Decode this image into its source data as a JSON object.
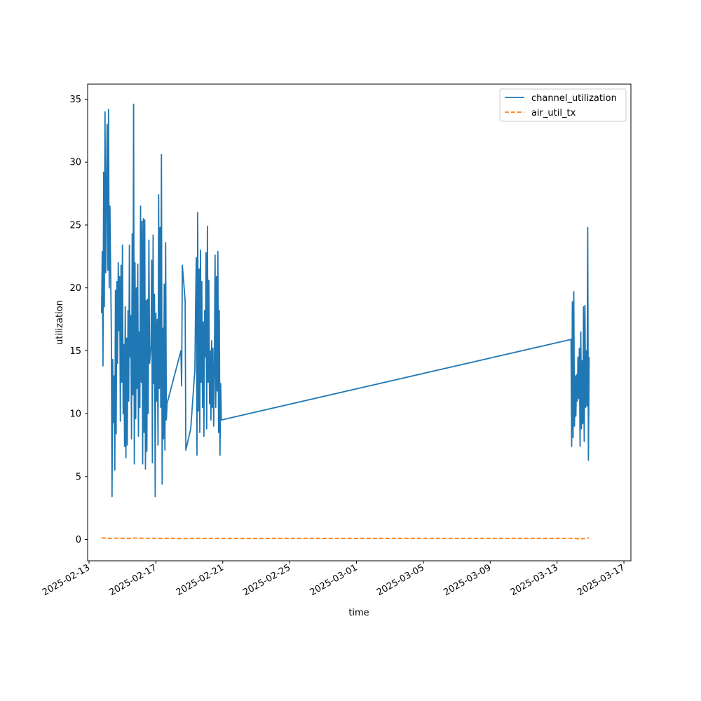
{
  "chart_data": {
    "type": "line",
    "xlabel": "time",
    "ylabel": "utilization",
    "x_type": "date",
    "xlim": [
      "2025-02-12T22:00",
      "2025-03-17T10:00"
    ],
    "ylim": [
      -1.7,
      36.2
    ],
    "x_ticks": [
      "2025-02-13",
      "2025-02-17",
      "2025-02-21",
      "2025-02-25",
      "2025-03-01",
      "2025-03-05",
      "2025-03-09",
      "2025-03-13",
      "2025-03-17"
    ],
    "y_ticks": [
      0,
      5,
      10,
      15,
      20,
      25,
      30,
      35
    ],
    "legend": "top-right",
    "grid": false,
    "series": [
      {
        "name": "channel_utilization",
        "color": "#1f77b4",
        "style": "solid",
        "points": [
          [
            "2025-02-13T18:00",
            18.0
          ],
          [
            "2025-02-13T19:00",
            22.9
          ],
          [
            "2025-02-13T20:00",
            13.8
          ],
          [
            "2025-02-13T21:00",
            29.2
          ],
          [
            "2025-02-13T22:00",
            18.5
          ],
          [
            "2025-02-13T23:00",
            34.0
          ],
          [
            "2025-02-14T00:00",
            21.2
          ],
          [
            "2025-02-14T01:00",
            27.5
          ],
          [
            "2025-02-14T02:00",
            33.0
          ],
          [
            "2025-02-14T03:00",
            21.4
          ],
          [
            "2025-02-14T04:00",
            34.2
          ],
          [
            "2025-02-14T05:00",
            20.0
          ],
          [
            "2025-02-14T06:00",
            26.5
          ],
          [
            "2025-02-14T08:00",
            16.6
          ],
          [
            "2025-02-14T09:00",
            3.4
          ],
          [
            "2025-02-14T10:00",
            14.3
          ],
          [
            "2025-02-14T11:00",
            9.3
          ],
          [
            "2025-02-14T12:00",
            13.0
          ],
          [
            "2025-02-14T13:00",
            5.5
          ],
          [
            "2025-02-14T14:00",
            19.8
          ],
          [
            "2025-02-14T15:00",
            8.4
          ],
          [
            "2025-02-14T16:00",
            20.5
          ],
          [
            "2025-02-14T17:00",
            14.0
          ],
          [
            "2025-02-14T18:00",
            22.0
          ],
          [
            "2025-02-14T19:00",
            16.6
          ],
          [
            "2025-02-14T20:00",
            20.9
          ],
          [
            "2025-02-14T21:00",
            9.4
          ],
          [
            "2025-02-14T22:00",
            21.8
          ],
          [
            "2025-02-14T23:00",
            12.5
          ],
          [
            "2025-02-15T00:00",
            23.4
          ],
          [
            "2025-02-15T01:00",
            10.0
          ],
          [
            "2025-02-15T02:00",
            15.5
          ],
          [
            "2025-02-15T03:00",
            7.4
          ],
          [
            "2025-02-15T04:00",
            18.5
          ],
          [
            "2025-02-15T05:00",
            6.5
          ],
          [
            "2025-02-15T06:00",
            16.0
          ],
          [
            "2025-02-15T07:00",
            7.5
          ],
          [
            "2025-02-15T08:00",
            18.2
          ],
          [
            "2025-02-15T09:00",
            11.0
          ],
          [
            "2025-02-15T10:00",
            23.4
          ],
          [
            "2025-02-15T11:00",
            14.5
          ],
          [
            "2025-02-15T12:00",
            17.8
          ],
          [
            "2025-02-15T13:00",
            8.0
          ],
          [
            "2025-02-15T14:00",
            24.3
          ],
          [
            "2025-02-15T15:00",
            11.5
          ],
          [
            "2025-02-15T16:00",
            34.6
          ],
          [
            "2025-02-15T17:00",
            6.0
          ],
          [
            "2025-02-15T18:00",
            22.0
          ],
          [
            "2025-02-15T19:00",
            9.6
          ],
          [
            "2025-02-15T20:00",
            20.0
          ],
          [
            "2025-02-15T21:00",
            12.0
          ],
          [
            "2025-02-15T22:00",
            21.9
          ],
          [
            "2025-02-15T23:00",
            8.2
          ],
          [
            "2025-02-16T00:00",
            16.5
          ],
          [
            "2025-02-16T01:00",
            10.5
          ],
          [
            "2025-02-16T02:00",
            26.5
          ],
          [
            "2025-02-16T03:00",
            12.5
          ],
          [
            "2025-02-16T04:00",
            25.3
          ],
          [
            "2025-02-16T05:00",
            6.0
          ],
          [
            "2025-02-16T06:00",
            25.5
          ],
          [
            "2025-02-16T07:00",
            8.5
          ],
          [
            "2025-02-16T08:00",
            25.4
          ],
          [
            "2025-02-16T09:00",
            5.6
          ],
          [
            "2025-02-16T10:00",
            19.0
          ],
          [
            "2025-02-16T11:00",
            7.0
          ],
          [
            "2025-02-16T12:00",
            19.1
          ],
          [
            "2025-02-16T13:00",
            10.0
          ],
          [
            "2025-02-16T14:00",
            23.8
          ],
          [
            "2025-02-16T15:00",
            14.0
          ],
          [
            "2025-02-16T17:00",
            15.4
          ],
          [
            "2025-02-16T18:00",
            22.2
          ],
          [
            "2025-02-16T19:00",
            6.1
          ],
          [
            "2025-02-16T20:00",
            24.2
          ],
          [
            "2025-02-16T21:00",
            12.4
          ],
          [
            "2025-02-16T22:00",
            19.5
          ],
          [
            "2025-02-16T23:00",
            3.4
          ],
          [
            "2025-02-17T00:00",
            18.0
          ],
          [
            "2025-02-17T01:00",
            11.0
          ],
          [
            "2025-02-17T02:00",
            17.5
          ],
          [
            "2025-02-17T03:00",
            7.5
          ],
          [
            "2025-02-17T04:00",
            27.4
          ],
          [
            "2025-02-17T05:00",
            12.0
          ],
          [
            "2025-02-17T06:00",
            24.8
          ],
          [
            "2025-02-17T07:00",
            10.5
          ],
          [
            "2025-02-17T08:00",
            30.6
          ],
          [
            "2025-02-17T09:00",
            4.4
          ],
          [
            "2025-02-17T10:00",
            16.8
          ],
          [
            "2025-02-17T11:00",
            8.0
          ],
          [
            "2025-02-17T12:00",
            20.3
          ],
          [
            "2025-02-17T13:00",
            7.1
          ],
          [
            "2025-02-17T14:00",
            23.6
          ],
          [
            "2025-02-17T15:00",
            9.5
          ],
          [
            "2025-02-17T16:00",
            10.8
          ],
          [
            "2025-02-18T12:00",
            15.0
          ],
          [
            "2025-02-18T13:00",
            12.2
          ],
          [
            "2025-02-18T14:00",
            21.8
          ],
          [
            "2025-02-18T18:00",
            19.0
          ],
          [
            "2025-02-18T19:00",
            7.1
          ],
          [
            "2025-02-19T02:00",
            8.8
          ],
          [
            "2025-02-19T08:00",
            13.5
          ],
          [
            "2025-02-19T09:00",
            18.5
          ],
          [
            "2025-02-19T10:00",
            22.4
          ],
          [
            "2025-02-19T11:00",
            6.7
          ],
          [
            "2025-02-19T12:00",
            26.0
          ],
          [
            "2025-02-19T13:00",
            10.2
          ],
          [
            "2025-02-19T14:00",
            21.5
          ],
          [
            "2025-02-19T15:00",
            8.5
          ],
          [
            "2025-02-19T16:00",
            23.0
          ],
          [
            "2025-02-19T17:00",
            12.5
          ],
          [
            "2025-02-19T18:00",
            20.5
          ],
          [
            "2025-02-19T19:00",
            10.5
          ],
          [
            "2025-02-19T20:00",
            17.3
          ],
          [
            "2025-02-19T21:00",
            8.2
          ],
          [
            "2025-02-19T22:00",
            18.2
          ],
          [
            "2025-02-19T23:00",
            14.5
          ],
          [
            "2025-02-20T00:00",
            22.8
          ],
          [
            "2025-02-20T01:00",
            8.8
          ],
          [
            "2025-02-20T02:00",
            24.9
          ],
          [
            "2025-02-20T03:00",
            12.5
          ],
          [
            "2025-02-20T04:00",
            20.6
          ],
          [
            "2025-02-20T05:00",
            10.8
          ],
          [
            "2025-02-20T06:00",
            15.0
          ],
          [
            "2025-02-20T07:00",
            9.5
          ],
          [
            "2025-02-20T08:00",
            15.8
          ],
          [
            "2025-02-20T09:00",
            10.5
          ],
          [
            "2025-02-20T10:00",
            15.2
          ],
          [
            "2025-02-20T11:00",
            9.0
          ],
          [
            "2025-02-20T12:00",
            13.5
          ],
          [
            "2025-02-20T13:00",
            22.6
          ],
          [
            "2025-02-20T14:00",
            10.5
          ],
          [
            "2025-02-20T15:00",
            20.9
          ],
          [
            "2025-02-20T16:00",
            11.8
          ],
          [
            "2025-02-20T17:00",
            22.9
          ],
          [
            "2025-02-20T18:00",
            8.5
          ],
          [
            "2025-02-20T19:00",
            18.2
          ],
          [
            "2025-02-20T20:00",
            6.7
          ],
          [
            "2025-02-20T21:00",
            12.4
          ],
          [
            "2025-02-20T22:00",
            9.5
          ],
          [
            "2025-03-13T20:00",
            15.9
          ],
          [
            "2025-03-13T21:00",
            7.4
          ],
          [
            "2025-03-13T22:00",
            18.9
          ],
          [
            "2025-03-13T23:00",
            8.1
          ],
          [
            "2025-03-14T00:00",
            19.7
          ],
          [
            "2025-03-14T01:00",
            9.0
          ],
          [
            "2025-03-14T02:00",
            13.0
          ],
          [
            "2025-03-14T03:00",
            9.8
          ],
          [
            "2025-03-14T04:00",
            13.1
          ],
          [
            "2025-03-14T05:00",
            11.0
          ],
          [
            "2025-03-14T06:00",
            14.5
          ],
          [
            "2025-03-14T07:00",
            11.2
          ],
          [
            "2025-03-14T08:00",
            15.2
          ],
          [
            "2025-03-14T09:00",
            7.4
          ],
          [
            "2025-03-14T10:00",
            16.5
          ],
          [
            "2025-03-14T11:00",
            8.8
          ],
          [
            "2025-03-14T12:00",
            14.2
          ],
          [
            "2025-03-14T13:00",
            9.2
          ],
          [
            "2025-03-14T14:00",
            18.5
          ],
          [
            "2025-03-14T15:00",
            7.8
          ],
          [
            "2025-03-14T16:00",
            18.6
          ],
          [
            "2025-03-14T17:00",
            10.5
          ],
          [
            "2025-03-14T18:00",
            15.0
          ],
          [
            "2025-03-14T19:00",
            10.6
          ],
          [
            "2025-03-14T20:00",
            24.8
          ],
          [
            "2025-03-14T21:00",
            6.3
          ],
          [
            "2025-03-14T22:00",
            14.5
          ]
        ]
      },
      {
        "name": "air_util_tx",
        "color": "#ff7f0e",
        "style": "dashed",
        "points": [
          [
            "2025-02-13T18:00",
            0.12
          ],
          [
            "2025-02-14T06:00",
            0.08
          ],
          [
            "2025-02-14T18:00",
            0.1
          ],
          [
            "2025-02-15T06:00",
            0.07
          ],
          [
            "2025-02-15T18:00",
            0.11
          ],
          [
            "2025-02-16T06:00",
            0.09
          ],
          [
            "2025-02-16T18:00",
            0.1
          ],
          [
            "2025-02-17T06:00",
            0.08
          ],
          [
            "2025-02-17T16:00",
            0.1
          ],
          [
            "2025-02-18T12:00",
            0.06
          ],
          [
            "2025-02-19T12:00",
            0.08
          ],
          [
            "2025-02-20T12:00",
            0.09
          ],
          [
            "2025-02-20T22:00",
            0.07
          ],
          [
            "2025-03-13T20:00",
            0.09
          ],
          [
            "2025-03-14T08:00",
            0.05
          ],
          [
            "2025-03-14T16:00",
            0.06
          ],
          [
            "2025-03-14T22:00",
            0.12
          ]
        ]
      }
    ]
  }
}
